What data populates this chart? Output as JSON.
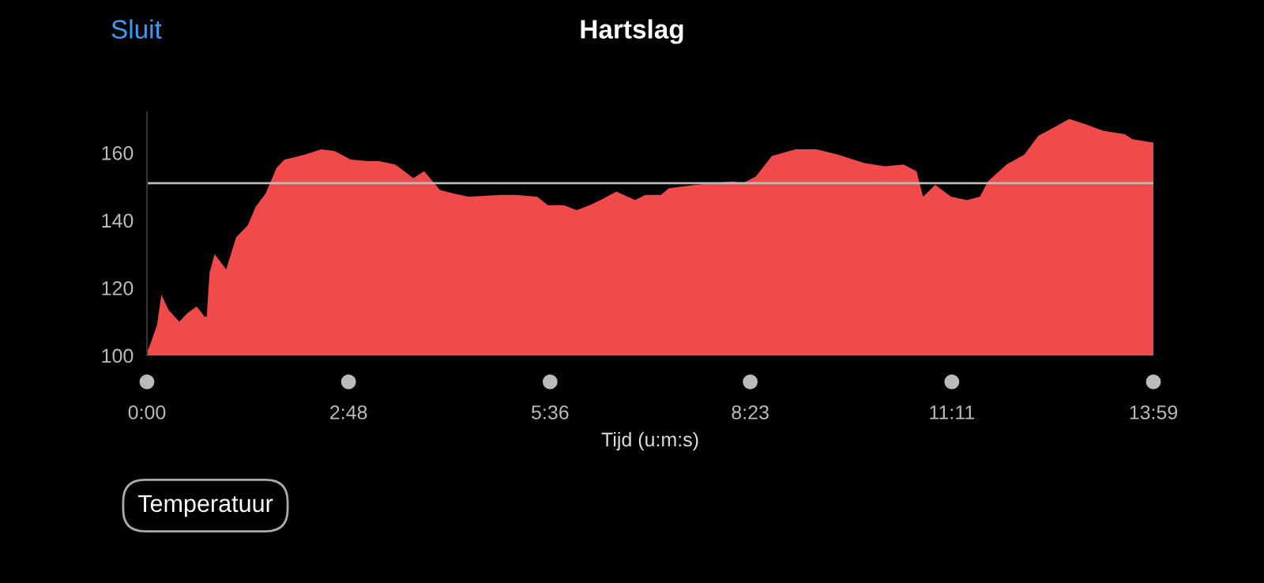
{
  "chart_data": {
    "type": "area",
    "title": "Hartslag",
    "xlabel": "Tijd (u:m:s)",
    "annotations": [
      "Sluit",
      "Temperatuur"
    ],
    "x": [
      0,
      0.04,
      0.14,
      0.2,
      0.3,
      0.45,
      0.56,
      0.69,
      0.8,
      0.83,
      0.87,
      0.94,
      1.1,
      1.24,
      1.4,
      1.51,
      1.65,
      1.8,
      1.91,
      2.02,
      2.2,
      2.42,
      2.61,
      2.83,
      3.08,
      3.23,
      3.45,
      3.7,
      3.85,
      4.07,
      4.25,
      4.47,
      4.91,
      5.13,
      5.42,
      5.57,
      5.79,
      5.97,
      6.15,
      6.3,
      6.52,
      6.78,
      6.92,
      7.14,
      7.25,
      7.62,
      8.13,
      8.28,
      8.46,
      8.68,
      9.01,
      9.3,
      9.59,
      9.96,
      10.25,
      10.51,
      10.69,
      10.78,
      10.95,
      11.17,
      11.39,
      11.57,
      11.68,
      11.94,
      12.19,
      12.38,
      12.6,
      12.81,
      13.03,
      13.28,
      13.58,
      13.69,
      13.98
    ],
    "series": [
      {
        "color": "#f04a4a",
        "values": [
          101,
          103,
          109,
          118,
          113.5,
          110,
          112.5,
          114.5,
          111.5,
          111.5,
          124.5,
          130,
          125.5,
          135,
          138.5,
          144,
          148,
          155.5,
          158,
          158.5,
          159.5,
          161,
          160.5,
          158,
          157.5,
          157.5,
          156.5,
          152.5,
          154.5,
          149,
          148,
          147,
          147.5,
          147.5,
          147,
          144.5,
          144.5,
          143,
          144.5,
          146,
          148.5,
          146,
          147.5,
          147.5,
          149.5,
          150.5,
          151.5,
          151,
          153,
          159,
          161,
          161,
          159.5,
          157,
          156,
          156.5,
          154.5,
          147,
          150.5,
          147,
          146,
          147,
          151.5,
          156.5,
          159.5,
          165,
          167.5,
          170,
          168.5,
          166.5,
          165.5,
          164,
          163
        ]
      }
    ],
    "xlim": [
      0,
      13.98
    ],
    "xticks": [
      {
        "value": 0,
        "label": "0:00"
      },
      {
        "value": 2.8,
        "label": "2:48"
      },
      {
        "value": 5.6,
        "label": "5:36"
      },
      {
        "value": 8.38,
        "label": "8:23"
      },
      {
        "value": 11.18,
        "label": "11:11"
      },
      {
        "value": 13.98,
        "label": "13:59"
      }
    ],
    "ylim": [
      100,
      172
    ],
    "yticks": [
      100,
      120,
      140,
      160
    ],
    "ref_lines": [
      {
        "axis": "y",
        "value": 151,
        "color": "#bbbbbb"
      }
    ],
    "grid": false
  }
}
